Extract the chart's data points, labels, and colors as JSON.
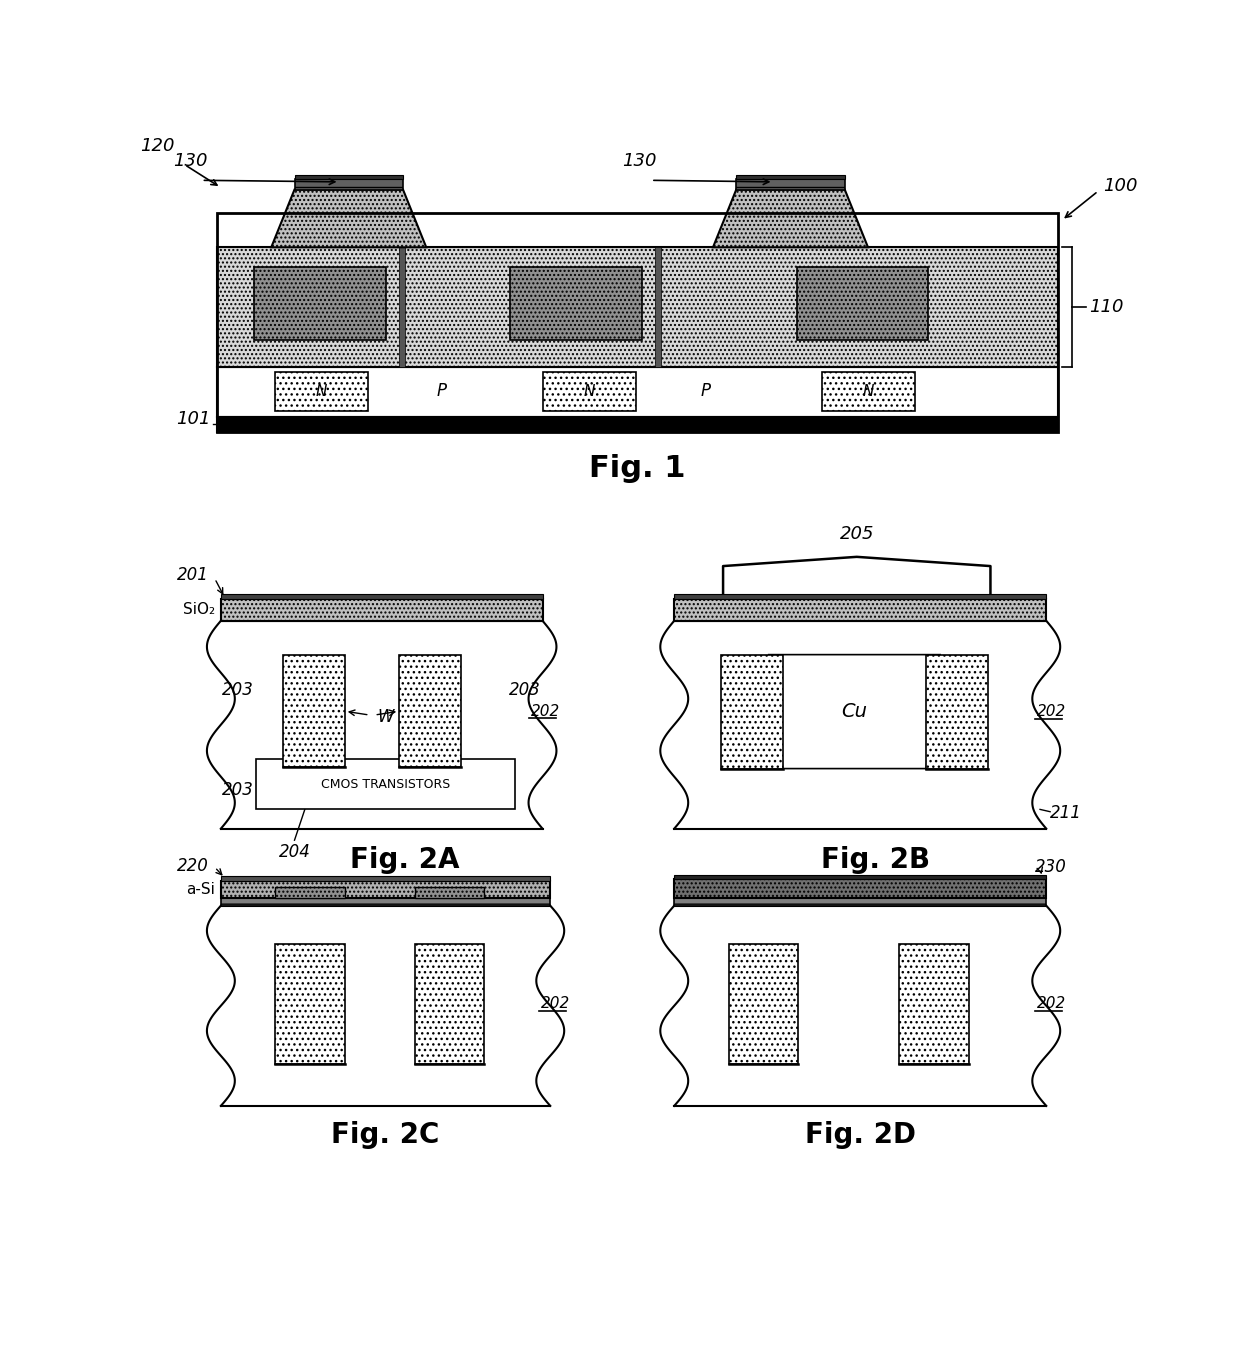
{
  "fig_title_1": "Fig. 1",
  "fig_title_2A": "Fig. 2A",
  "fig_title_2B": "Fig. 2B",
  "fig_title_2C": "Fig. 2C",
  "fig_title_2D": "Fig. 2D",
  "bg_color": "#ffffff",
  "label_130_left": "130",
  "label_130_right": "130",
  "label_100": "100",
  "label_120": "120",
  "label_110": "110",
  "label_101": "101",
  "label_201": "201",
  "label_202": "202",
  "label_203_left": "203",
  "label_203_right": "203",
  "label_204": "204",
  "label_SiO2": "SiO₂",
  "label_W": "W",
  "label_CMOS": "CMOS TRANSISTORS",
  "label_205": "205",
  "label_Cu": "Cu",
  "label_211": "211",
  "label_220": "220",
  "label_aSi": "a-Si",
  "label_230": "230"
}
